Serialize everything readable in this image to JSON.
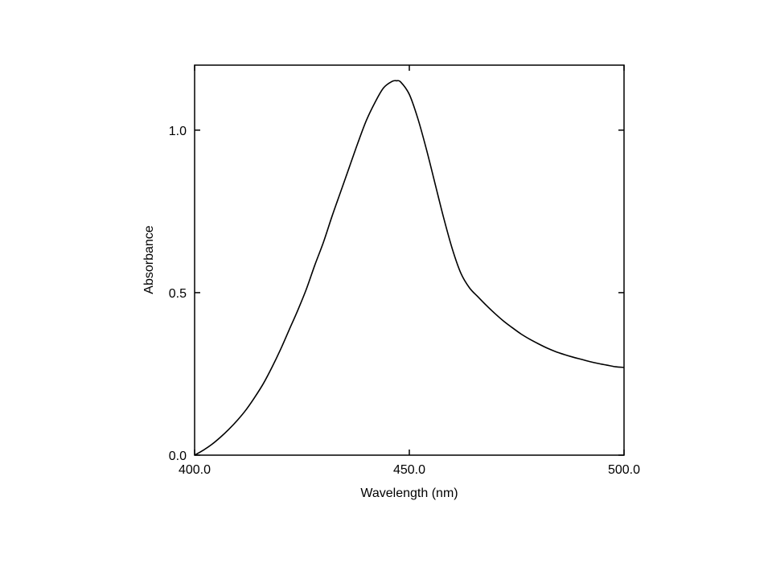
{
  "chart_data": {
    "type": "line",
    "title": "",
    "xlabel": "Wavelength (nm)",
    "ylabel": "Absorbance",
    "xlim": [
      400,
      500
    ],
    "ylim": [
      0,
      1.2
    ],
    "x_ticks": [
      400,
      450,
      500
    ],
    "x_tick_labels": [
      "400.0",
      "450.0",
      "500.0"
    ],
    "y_ticks": [
      0,
      0.5,
      1.0
    ],
    "y_tick_labels": [
      "0.0",
      "0.5",
      "1.0"
    ],
    "grid": false,
    "legend": "none",
    "line_color": "#000000",
    "series": [
      {
        "x": [
          400,
          402,
          404,
          406,
          408,
          410,
          412,
          414,
          416,
          418,
          420,
          422,
          424,
          426,
          428,
          430,
          432,
          434,
          436,
          438,
          440,
          442,
          444,
          446,
          447,
          448,
          450,
          452,
          454,
          456,
          458,
          460,
          462,
          464,
          466,
          468,
          470,
          472,
          474,
          476,
          478,
          480,
          482,
          484,
          486,
          488,
          490,
          492,
          494,
          496,
          498,
          500
        ],
        "y": [
          0.0,
          0.015,
          0.033,
          0.055,
          0.08,
          0.108,
          0.14,
          0.178,
          0.22,
          0.27,
          0.325,
          0.385,
          0.445,
          0.51,
          0.585,
          0.655,
          0.735,
          0.81,
          0.885,
          0.96,
          1.03,
          1.085,
          1.13,
          1.15,
          1.152,
          1.148,
          1.11,
          1.035,
          0.94,
          0.835,
          0.73,
          0.635,
          0.56,
          0.515,
          0.487,
          0.46,
          0.435,
          0.412,
          0.392,
          0.373,
          0.357,
          0.343,
          0.33,
          0.319,
          0.31,
          0.302,
          0.295,
          0.288,
          0.282,
          0.277,
          0.272,
          0.27
        ]
      }
    ]
  }
}
